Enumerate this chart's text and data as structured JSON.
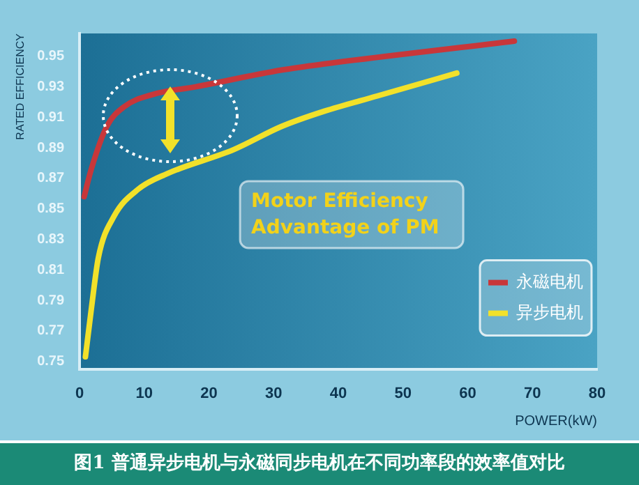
{
  "chart_data": {
    "type": "line",
    "title": "图1 普通异步电机与永磁同步电机在不同功率段的效率值对比",
    "xlabel": "POWER(kW)",
    "ylabel": "RATED EFFICIENCY",
    "annotations": [
      "Motor Efficiency Advantage of PM"
    ],
    "xlim": [
      0,
      80
    ],
    "xticks": [
      0,
      10,
      20,
      30,
      40,
      50,
      60,
      70,
      80
    ],
    "ylim": [
      0.745,
      0.965
    ],
    "yticks": [
      0.75,
      0.77,
      0.79,
      0.81,
      0.83,
      0.85,
      0.87,
      0.89,
      0.91,
      0.93,
      0.95
    ],
    "legend": "bottom right",
    "grid": false,
    "marker": "none",
    "line_style": "solid",
    "series": [
      {
        "name": "永磁电机",
        "color": "#c8373a",
        "x": [
          0.7,
          1.8,
          4.2,
          6.9,
          11.3,
          17.9,
          31.2,
          37.8,
          67.2
        ],
        "values": [
          0.858,
          0.876,
          0.904,
          0.917,
          0.925,
          0.93,
          0.941,
          0.945,
          0.96
        ]
      },
      {
        "name": "异步电机",
        "color": "#f2e12a",
        "x": [
          0.9,
          1.8,
          2.9,
          5.3,
          9.1,
          13.5,
          23.9,
          31.2,
          37.8,
          46,
          58.3
        ],
        "values": [
          0.753,
          0.784,
          0.818,
          0.845,
          0.863,
          0.873,
          0.889,
          0.904,
          0.914,
          0.924,
          0.939
        ]
      }
    ]
  }
}
